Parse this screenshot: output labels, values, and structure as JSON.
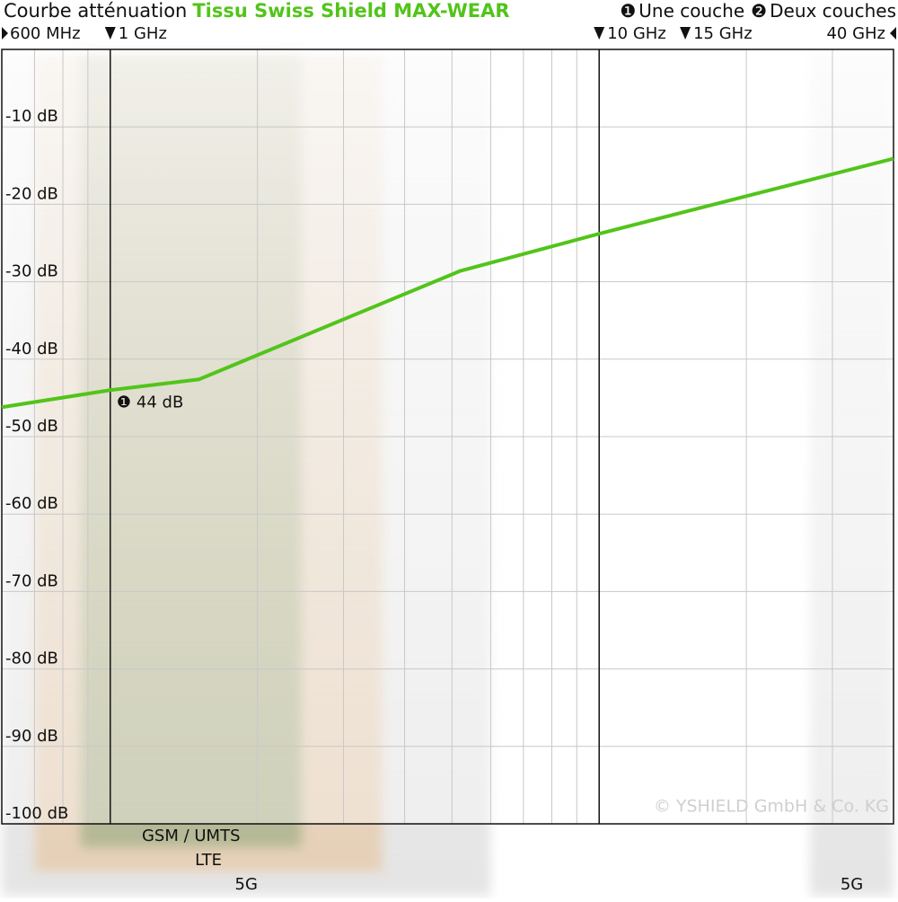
{
  "chart_data": {
    "type": "line",
    "title": "Courbe atténuation",
    "title_highlight": "Tissu Swiss Shield MAX-WEAR",
    "title_highlight_color": "#52c41a",
    "legend": [
      {
        "marker": "❶",
        "text": "Une couche"
      },
      {
        "marker": "❷",
        "text": "Deux couches"
      }
    ],
    "x_scale": "log",
    "xlim": [
      0.6,
      40
    ],
    "xticks": [
      {
        "value": 0.6,
        "label": "600 MHz"
      },
      {
        "value": 1,
        "label": "1 GHz"
      },
      {
        "value": 10,
        "label": "10 GHz"
      },
      {
        "value": 15,
        "label": "15 GHz"
      },
      {
        "value": 40,
        "label": "40 GHz"
      }
    ],
    "xmajor": [
      1,
      10
    ],
    "xminor": [
      0.7,
      0.8,
      0.9,
      2,
      3,
      4,
      5,
      6,
      7,
      8,
      9,
      20,
      30
    ],
    "ylim": [
      -100,
      0
    ],
    "yticks": [
      {
        "value": -10,
        "label": "-10 dB"
      },
      {
        "value": -20,
        "label": "-20 dB"
      },
      {
        "value": -30,
        "label": "-30 dB"
      },
      {
        "value": -40,
        "label": "-40 dB"
      },
      {
        "value": -50,
        "label": "-50 dB"
      },
      {
        "value": -60,
        "label": "-60 dB"
      },
      {
        "value": -70,
        "label": "-70 dB"
      },
      {
        "value": -80,
        "label": "-80 dB"
      },
      {
        "value": -90,
        "label": "-90 dB"
      },
      {
        "value": -100,
        "label": "-100 dB"
      }
    ],
    "grid": true,
    "series": [
      {
        "color": "#52c41a",
        "x": [
          0.6,
          1,
          1.52,
          5.2,
          10,
          40
        ],
        "values": [
          -46.2,
          -44,
          -42.6,
          -28.6,
          -23.8,
          -14.1
        ]
      }
    ],
    "annotation": {
      "marker": "❶",
      "text": "44 dB"
    },
    "bands": [
      {
        "name": "GSM / UMTS",
        "range": [
          0.87,
          2.46
        ],
        "color": "#a4b08a"
      },
      {
        "name": "LTE",
        "range": [
          0.7,
          3.6
        ],
        "color": "#e6c9a8"
      },
      {
        "name": "5G",
        "range": [
          0.6,
          6
        ],
        "color": "#dcdcdc"
      },
      {
        "name": "5G",
        "range": [
          27,
          40
        ],
        "color": "#dcdcdc"
      }
    ],
    "watermark": "© YSHIELD GmbH & Co. KG"
  }
}
